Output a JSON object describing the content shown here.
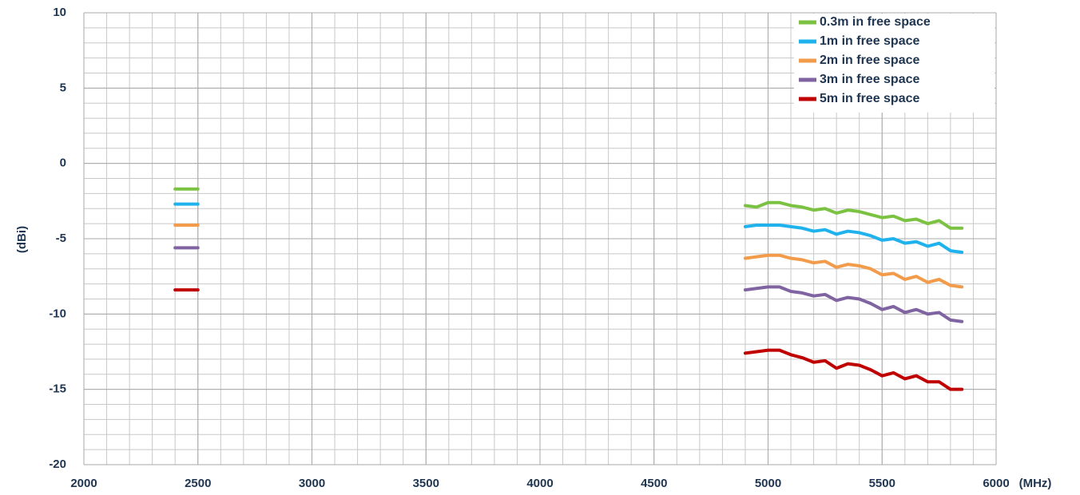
{
  "chart_data": {
    "type": "line",
    "x": [
      2400,
      2450,
      2500,
      null,
      4900,
      4950,
      5000,
      5050,
      5100,
      5150,
      5200,
      5250,
      5300,
      5350,
      5400,
      5450,
      5500,
      5550,
      5600,
      5650,
      5700,
      5750,
      5800,
      5850
    ],
    "series": [
      {
        "name": "0.3m in free space",
        "color": "#7cc242",
        "values": [
          -1.7,
          -1.7,
          -1.7,
          null,
          -2.8,
          -2.9,
          -2.6,
          -2.6,
          -2.8,
          -2.9,
          -3.1,
          -3.0,
          -3.3,
          -3.1,
          -3.2,
          -3.4,
          -3.6,
          -3.5,
          -3.8,
          -3.7,
          -4.0,
          -3.8,
          -4.3,
          -4.3
        ]
      },
      {
        "name": "1m in free space",
        "color": "#1fb2ec",
        "values": [
          -2.7,
          -2.7,
          -2.7,
          null,
          -4.2,
          -4.1,
          -4.1,
          -4.1,
          -4.2,
          -4.3,
          -4.5,
          -4.4,
          -4.7,
          -4.5,
          -4.6,
          -4.8,
          -5.1,
          -5.0,
          -5.3,
          -5.2,
          -5.5,
          -5.3,
          -5.8,
          -5.9
        ]
      },
      {
        "name": "2m in free space",
        "color": "#f29b4a",
        "values": [
          -4.1,
          -4.1,
          -4.1,
          null,
          -6.3,
          -6.2,
          -6.1,
          -6.1,
          -6.3,
          -6.4,
          -6.6,
          -6.5,
          -6.9,
          -6.7,
          -6.8,
          -7.0,
          -7.4,
          -7.3,
          -7.7,
          -7.5,
          -7.9,
          -7.7,
          -8.1,
          -8.2
        ]
      },
      {
        "name": "3m in free space",
        "color": "#8064a2",
        "values": [
          -5.6,
          -5.6,
          -5.6,
          null,
          -8.4,
          -8.3,
          -8.2,
          -8.2,
          -8.5,
          -8.6,
          -8.8,
          -8.7,
          -9.1,
          -8.9,
          -9.0,
          -9.3,
          -9.7,
          -9.5,
          -9.9,
          -9.7,
          -10.0,
          -9.9,
          -10.4,
          -10.5
        ]
      },
      {
        "name": "5m in free space",
        "color": "#c00000",
        "values": [
          -8.4,
          -8.4,
          -8.4,
          null,
          -12.6,
          -12.5,
          -12.4,
          -12.4,
          -12.7,
          -12.9,
          -13.2,
          -13.1,
          -13.6,
          -13.3,
          -13.4,
          -13.7,
          -14.1,
          -13.9,
          -14.3,
          -14.1,
          -14.5,
          -14.5,
          -15.0,
          -15.0
        ]
      }
    ],
    "xlabel": "(MHz)",
    "ylabel": "(dBi)",
    "xlim": [
      2000,
      6000
    ],
    "ylim": [
      -20,
      10
    ],
    "xticks": [
      2000,
      2500,
      3000,
      3500,
      4000,
      4500,
      5000,
      5500,
      6000
    ],
    "yticks": [
      -20,
      -15,
      -10,
      -5,
      0,
      5,
      10
    ],
    "minor_grid": {
      "x": 100,
      "y": 1
    },
    "grid": true,
    "legend": "upper right"
  }
}
